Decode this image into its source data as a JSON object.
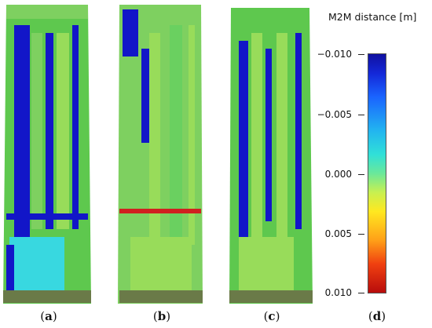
{
  "figure": {
    "panels": [
      {
        "id": "a",
        "caption_open": "(",
        "caption_letter": "a",
        "caption_close": ")"
      },
      {
        "id": "b",
        "caption_open": "(",
        "caption_letter": "b",
        "caption_close": ")"
      },
      {
        "id": "c",
        "caption_open": "(",
        "caption_letter": "c",
        "caption_close": ")"
      },
      {
        "id": "d",
        "caption_open": "(",
        "caption_letter": "d",
        "caption_close": ")"
      }
    ],
    "legend": {
      "title": "M2M distance [m]",
      "ticks": [
        "−0.010",
        "−0.005",
        "0.000",
        "0.005",
        "0.010"
      ],
      "tick_values": [
        -0.01,
        -0.005,
        0.0,
        0.005,
        0.01
      ],
      "range": [
        -0.01,
        0.01
      ]
    },
    "colors": {
      "deep_blue": "#1216c8",
      "green": "#5ec84e",
      "light_green": "#98dc5a",
      "cyan": "#38d8e0",
      "red": "#d02020",
      "base_ground": "#6a7a48"
    }
  }
}
